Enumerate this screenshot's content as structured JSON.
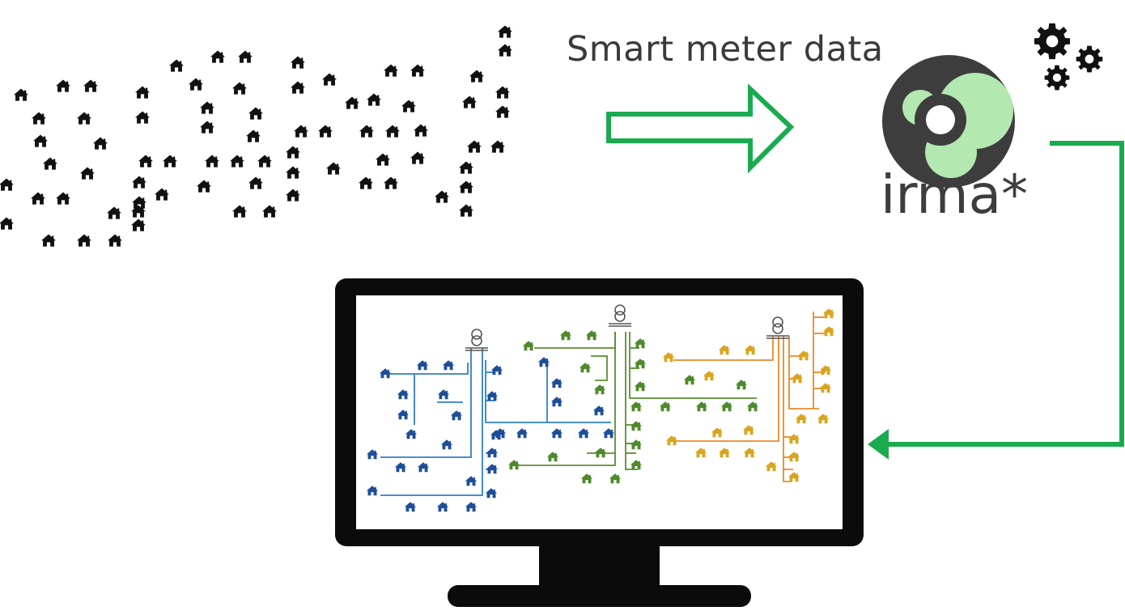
{
  "diagram": {
    "input_label": "Smart meter data",
    "logo_text": "irma*",
    "colors": {
      "house": "#111111",
      "arrow": "#1aab4e",
      "monitor": "#0b0b0b",
      "feeder_blue": "#2f7fc6",
      "feeder_green": "#5a8f2e",
      "feeder_orange": "#e98a2a",
      "house_blue": "#1f4e99",
      "house_green": "#4e8a2c",
      "house_yellow": "#d9a520",
      "logo_dark": "#3d3d3d",
      "logo_light": "#b3e8b0"
    },
    "icons": [
      "house-icon",
      "right-arrow-icon",
      "gear-icon",
      "irma-logo",
      "monitor-icon",
      "transformer-icon",
      "left-arrow-icon"
    ]
  }
}
